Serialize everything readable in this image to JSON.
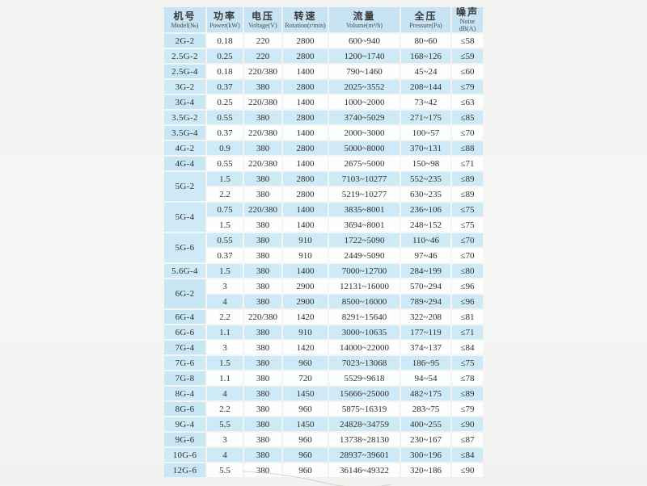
{
  "colors": {
    "header_bg": "#c6e4f4",
    "model_col_bg": "#c9e6f5",
    "alt_row_bg": "#cfeaf7",
    "white_row_bg": "#fcfdfd",
    "text": "#2e2e2e",
    "page_bg": "#f3f4f2"
  },
  "table": {
    "columns": [
      {
        "key": "model",
        "zh": "机号",
        "en": "Model(№)"
      },
      {
        "key": "power",
        "zh": "功率",
        "en": "Power(kW)"
      },
      {
        "key": "voltage",
        "zh": "电压",
        "en": "Voltage(V)"
      },
      {
        "key": "rotation",
        "zh": "转速",
        "en": "Rotation(r/min)"
      },
      {
        "key": "volume",
        "zh": "流量",
        "en": "Volume(m³/h)"
      },
      {
        "key": "pressure",
        "zh": "全压",
        "en": "Pressure(Pa)"
      },
      {
        "key": "noise",
        "zh": "噪声",
        "en": "Noise dB(A)"
      }
    ],
    "rows": [
      {
        "model": "2G-2",
        "span": 1,
        "power": "0.18",
        "voltage": "220",
        "rotation": "2800",
        "volume": "600~940",
        "pressure": "80~60",
        "noise": "≤58"
      },
      {
        "model": "2.5G-2",
        "span": 1,
        "power": "0.25",
        "voltage": "220",
        "rotation": "2800",
        "volume": "1200~1740",
        "pressure": "168~126",
        "noise": "≤59"
      },
      {
        "model": "2.5G-4",
        "span": 1,
        "power": "0.18",
        "voltage": "220/380",
        "rotation": "1400",
        "volume": "790~1460",
        "pressure": "45~24",
        "noise": "≤60"
      },
      {
        "model": "3G-2",
        "span": 1,
        "power": "0.37",
        "voltage": "380",
        "rotation": "2800",
        "volume": "2025~3552",
        "pressure": "208~144",
        "noise": "≤79"
      },
      {
        "model": "3G-4",
        "span": 1,
        "power": "0.25",
        "voltage": "220/380",
        "rotation": "1400",
        "volume": "1000~2000",
        "pressure": "73~42",
        "noise": "≤63"
      },
      {
        "model": "3.5G-2",
        "span": 1,
        "power": "0.55",
        "voltage": "380",
        "rotation": "2800",
        "volume": "3740~5029",
        "pressure": "271~175",
        "noise": "≤85"
      },
      {
        "model": "3.5G-4",
        "span": 1,
        "power": "0.37",
        "voltage": "220/380",
        "rotation": "1400",
        "volume": "2000~3000",
        "pressure": "100~57",
        "noise": "≤70"
      },
      {
        "model": "4G-2",
        "span": 1,
        "power": "0.9",
        "voltage": "380",
        "rotation": "2800",
        "volume": "5000~8000",
        "pressure": "370~131",
        "noise": "≤88"
      },
      {
        "model": "4G-4",
        "span": 1,
        "power": "0.55",
        "voltage": "220/380",
        "rotation": "1400",
        "volume": "2675~5000",
        "pressure": "150~98",
        "noise": "≤71"
      },
      {
        "model": "5G-2",
        "span": 2,
        "power": "1.5",
        "voltage": "380",
        "rotation": "2800",
        "volume": "7103~10277",
        "pressure": "552~235",
        "noise": "≤89"
      },
      {
        "power": "2.2",
        "voltage": "380",
        "rotation": "2800",
        "volume": "5219~10277",
        "pressure": "630~235",
        "noise": "≤89"
      },
      {
        "model": "5G-4",
        "span": 2,
        "power": "0.75",
        "voltage": "220/380",
        "rotation": "1400",
        "volume": "3835~8001",
        "pressure": "236~106",
        "noise": "≤75"
      },
      {
        "power": "1.5",
        "voltage": "380",
        "rotation": "1400",
        "volume": "3694~8001",
        "pressure": "248~152",
        "noise": "≤75"
      },
      {
        "model": "5G-6",
        "span": 2,
        "power": "0.55",
        "voltage": "380",
        "rotation": "910",
        "volume": "1722~5090",
        "pressure": "110~46",
        "noise": "≤70"
      },
      {
        "power": "0.37",
        "voltage": "380",
        "rotation": "910",
        "volume": "2449~5090",
        "pressure": "97~46",
        "noise": "≤70"
      },
      {
        "model": "5.6G-4",
        "span": 1,
        "power": "1.5",
        "voltage": "380",
        "rotation": "1400",
        "volume": "7000~12700",
        "pressure": "284~199",
        "noise": "≤80"
      },
      {
        "model": "6G-2",
        "span": 2,
        "power": "3",
        "voltage": "380",
        "rotation": "2900",
        "volume": "12131~16000",
        "pressure": "570~294",
        "noise": "≤96"
      },
      {
        "power": "4",
        "voltage": "380",
        "rotation": "2900",
        "volume": "8500~16000",
        "pressure": "789~294",
        "noise": "≤96"
      },
      {
        "model": "6G-4",
        "span": 1,
        "power": "2.2",
        "voltage": "220/380",
        "rotation": "1420",
        "volume": "8291~15640",
        "pressure": "322~208",
        "noise": "≤81"
      },
      {
        "model": "6G-6",
        "span": 1,
        "power": "1.1",
        "voltage": "380",
        "rotation": "910",
        "volume": "3000~10635",
        "pressure": "177~119",
        "noise": "≤71"
      },
      {
        "model": "7G-4",
        "span": 1,
        "power": "3",
        "voltage": "380",
        "rotation": "1420",
        "volume": "14000~22000",
        "pressure": "374~137",
        "noise": "≤84"
      },
      {
        "model": "7G-6",
        "span": 1,
        "power": "1.5",
        "voltage": "380",
        "rotation": "960",
        "volume": "7023~13068",
        "pressure": "186~95",
        "noise": "≤75"
      },
      {
        "model": "7G-8",
        "span": 1,
        "power": "1.1",
        "voltage": "380",
        "rotation": "720",
        "volume": "5529~9618",
        "pressure": "94~54",
        "noise": "≤78"
      },
      {
        "model": "8G-4",
        "span": 1,
        "power": "4",
        "voltage": "380",
        "rotation": "1450",
        "volume": "15666~25000",
        "pressure": "482~175",
        "noise": "≤89"
      },
      {
        "model": "8G-6",
        "span": 1,
        "power": "2.2",
        "voltage": "380",
        "rotation": "960",
        "volume": "5875~16319",
        "pressure": "283~75",
        "noise": "≤79"
      },
      {
        "model": "9G-4",
        "span": 1,
        "power": "5.5",
        "voltage": "380",
        "rotation": "1450",
        "volume": "24828~34759",
        "pressure": "400~255",
        "noise": "≤90"
      },
      {
        "model": "9G-6",
        "span": 1,
        "power": "3",
        "voltage": "380",
        "rotation": "960",
        "volume": "13738~28130",
        "pressure": "230~167",
        "noise": "≤87"
      },
      {
        "model": "10G-6",
        "span": 1,
        "power": "4",
        "voltage": "380",
        "rotation": "960",
        "volume": "28937~39601",
        "pressure": "300~196",
        "noise": "≤84"
      },
      {
        "model": "12G-6",
        "span": 1,
        "power": "5.5",
        "voltage": "380",
        "rotation": "960",
        "volume": "36146~49322",
        "pressure": "320~186",
        "noise": "≤90"
      }
    ]
  }
}
